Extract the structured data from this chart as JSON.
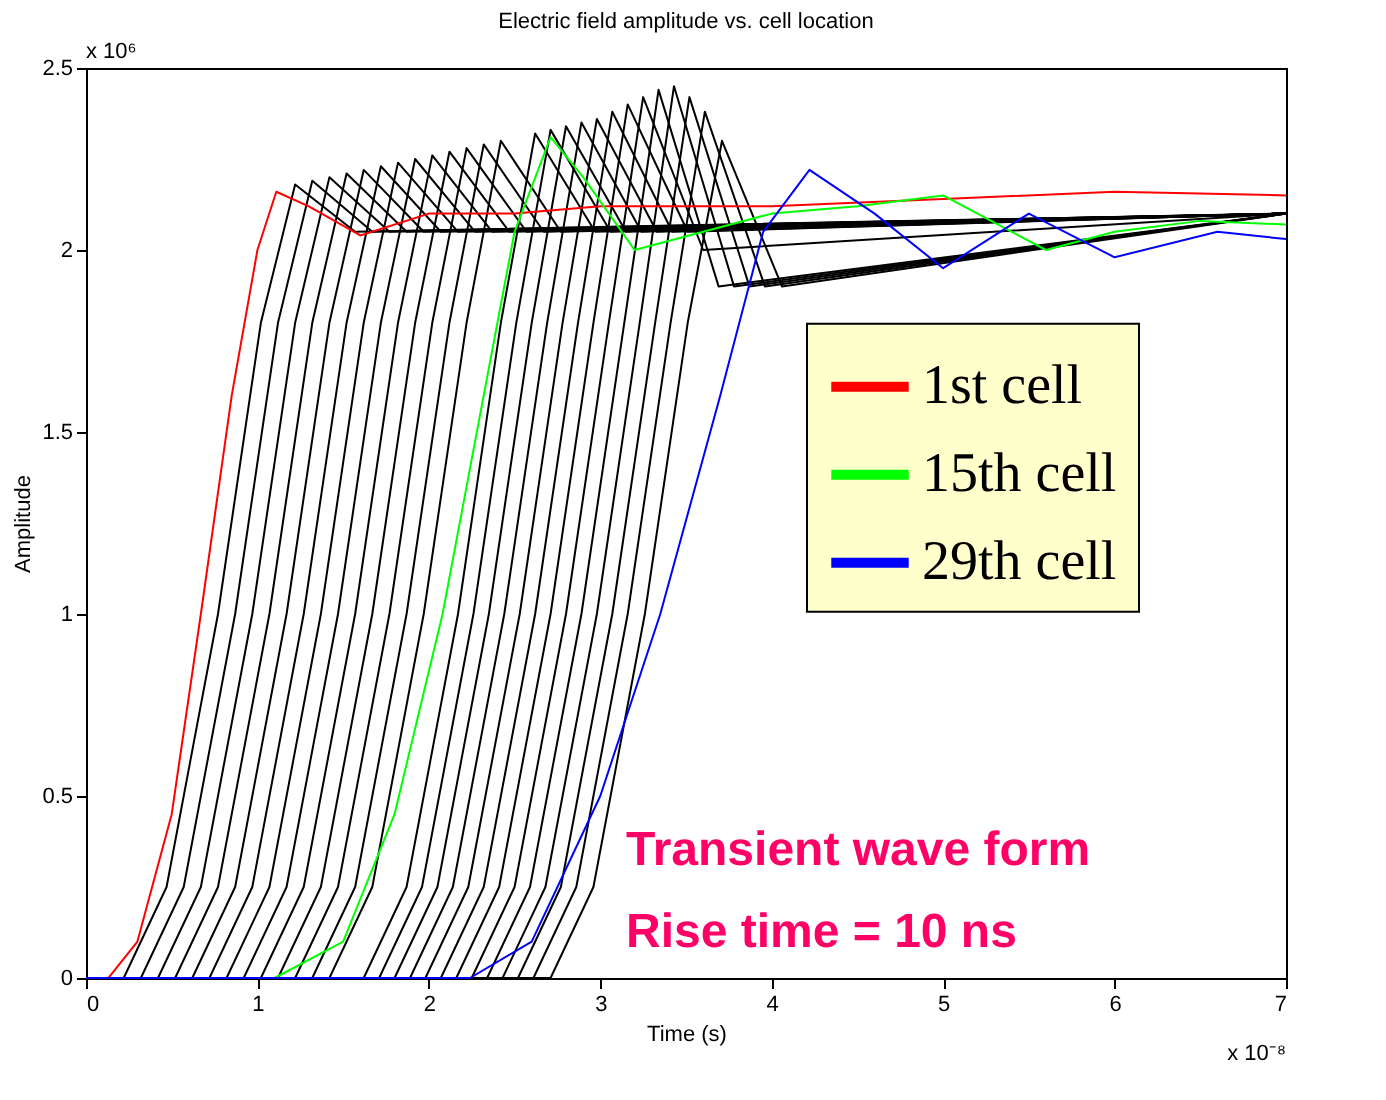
{
  "chart_data": {
    "type": "line",
    "title": "Electric field amplitude vs. cell location",
    "xlabel": "Time (s)",
    "ylabel": "Amplitude",
    "xlim": [
      0,
      7
    ],
    "ylim": [
      0,
      2.5
    ],
    "xticks": [
      0,
      1,
      2,
      3,
      4,
      5,
      6,
      7
    ],
    "yticks": [
      0,
      0.5,
      1,
      1.5,
      2,
      2.5
    ],
    "grid": false,
    "legend": "right",
    "line_style": "solid",
    "marker": "none",
    "annotations": [
      "x 10⁶",
      "x 10⁻⁸",
      "Transient wave form",
      "Rise time = 10 ns"
    ],
    "series": [
      {
        "color": "#000000",
        "x": [
          0,
          0.22,
          0.47,
          0.77,
          1.02,
          1.22,
          1.57,
          7
        ],
        "values": [
          0,
          0,
          0.25,
          1.0,
          1.8,
          2.18,
          2.05,
          2.1
        ]
      },
      {
        "color": "#000000",
        "x": [
          0,
          0.32,
          0.57,
          0.87,
          1.12,
          1.32,
          1.67,
          7
        ],
        "values": [
          0,
          0,
          0.25,
          1.0,
          1.8,
          2.19,
          2.05,
          2.1
        ]
      },
      {
        "color": "#000000",
        "x": [
          0,
          0.42,
          0.67,
          0.97,
          1.22,
          1.42,
          1.77,
          7
        ],
        "values": [
          0,
          0,
          0.25,
          1.0,
          1.8,
          2.2,
          2.05,
          2.1
        ]
      },
      {
        "color": "#000000",
        "x": [
          0,
          0.52,
          0.77,
          1.07,
          1.32,
          1.52,
          1.87,
          7
        ],
        "values": [
          0,
          0,
          0.25,
          1.0,
          1.8,
          2.21,
          2.05,
          2.1
        ]
      },
      {
        "color": "#000000",
        "x": [
          0,
          0.62,
          0.87,
          1.17,
          1.42,
          1.62,
          1.97,
          7
        ],
        "values": [
          0,
          0,
          0.25,
          1.0,
          1.8,
          2.22,
          2.05,
          2.1
        ]
      },
      {
        "color": "#000000",
        "x": [
          0,
          0.72,
          0.97,
          1.27,
          1.52,
          1.72,
          2.07,
          7
        ],
        "values": [
          0,
          0,
          0.25,
          1.0,
          1.8,
          2.23,
          2.05,
          2.1
        ]
      },
      {
        "color": "#000000",
        "x": [
          0,
          0.82,
          1.07,
          1.37,
          1.62,
          1.82,
          2.17,
          7
        ],
        "values": [
          0,
          0,
          0.25,
          1.0,
          1.8,
          2.24,
          2.05,
          2.1
        ]
      },
      {
        "color": "#000000",
        "x": [
          0,
          0.92,
          1.17,
          1.47,
          1.72,
          1.92,
          2.27,
          7
        ],
        "values": [
          0,
          0,
          0.25,
          1.0,
          1.8,
          2.25,
          2.05,
          2.1
        ]
      },
      {
        "color": "#000000",
        "x": [
          0,
          1.02,
          1.27,
          1.57,
          1.82,
          2.02,
          2.37,
          7
        ],
        "values": [
          0,
          0,
          0.25,
          1.0,
          1.8,
          2.26,
          2.05,
          2.1
        ]
      },
      {
        "color": "#000000",
        "x": [
          0,
          1.12,
          1.37,
          1.67,
          1.92,
          2.12,
          2.47,
          7
        ],
        "values": [
          0,
          0,
          0.25,
          1.0,
          1.8,
          2.27,
          2.05,
          2.1
        ]
      },
      {
        "color": "#000000",
        "x": [
          0,
          1.22,
          1.47,
          1.77,
          2.02,
          2.22,
          2.57,
          7
        ],
        "values": [
          0,
          0,
          0.25,
          1.0,
          1.8,
          2.28,
          2.05,
          2.1
        ]
      },
      {
        "color": "#000000",
        "x": [
          0,
          1.32,
          1.57,
          1.87,
          2.12,
          2.32,
          2.67,
          7
        ],
        "values": [
          0,
          0,
          0.25,
          1.0,
          1.8,
          2.29,
          2.05,
          2.1
        ]
      },
      {
        "color": "#000000",
        "x": [
          0,
          1.42,
          1.67,
          1.97,
          2.22,
          2.42,
          2.77,
          7
        ],
        "values": [
          0,
          0,
          0.25,
          1.0,
          1.8,
          2.3,
          2.05,
          2.1
        ]
      },
      {
        "color": "#000000",
        "x": [
          0,
          1.62,
          1.87,
          2.17,
          2.42,
          2.62,
          2.97,
          7
        ],
        "values": [
          0,
          0,
          0.25,
          1.0,
          1.8,
          2.32,
          2.05,
          2.1
        ]
      },
      {
        "color": "#000000",
        "x": [
          0,
          1.71,
          1.96,
          2.26,
          2.51,
          2.71,
          3.06,
          7
        ],
        "values": [
          0,
          0,
          0.25,
          1.0,
          1.8,
          2.33,
          2.05,
          2.1
        ]
      },
      {
        "color": "#000000",
        "x": [
          0,
          1.8,
          2.05,
          2.35,
          2.6,
          2.8,
          3.15,
          7
        ],
        "values": [
          0,
          0,
          0.25,
          1.0,
          1.8,
          2.34,
          2.05,
          2.1
        ]
      },
      {
        "color": "#000000",
        "x": [
          0,
          1.89,
          2.14,
          2.44,
          2.69,
          2.89,
          3.24,
          7
        ],
        "values": [
          0,
          0,
          0.25,
          1.0,
          1.8,
          2.35,
          2.05,
          2.1
        ]
      },
      {
        "color": "#000000",
        "x": [
          0,
          1.98,
          2.23,
          2.53,
          2.78,
          2.98,
          3.33,
          7
        ],
        "values": [
          0,
          0,
          0.25,
          1.0,
          1.8,
          2.36,
          2.05,
          2.1
        ]
      },
      {
        "color": "#000000",
        "x": [
          0,
          2.07,
          2.32,
          2.62,
          2.87,
          3.07,
          3.42,
          7
        ],
        "values": [
          0,
          0,
          0.25,
          1.0,
          1.8,
          2.38,
          2.05,
          2.1
        ]
      },
      {
        "color": "#000000",
        "x": [
          0,
          2.16,
          2.41,
          2.71,
          2.96,
          3.16,
          3.51,
          7
        ],
        "values": [
          0,
          0,
          0.25,
          1.0,
          1.8,
          2.4,
          2.05,
          2.1
        ]
      },
      {
        "color": "#000000",
        "x": [
          0,
          2.25,
          2.5,
          2.8,
          3.05,
          3.25,
          3.6,
          7
        ],
        "values": [
          0,
          0,
          0.25,
          1.0,
          1.8,
          2.42,
          2.0,
          2.1
        ]
      },
      {
        "color": "#000000",
        "x": [
          0,
          2.34,
          2.59,
          2.89,
          3.14,
          3.34,
          3.69,
          7
        ],
        "values": [
          0,
          0,
          0.25,
          1.0,
          1.8,
          2.44,
          1.9,
          2.1
        ]
      },
      {
        "color": "#000000",
        "x": [
          0,
          2.43,
          2.68,
          2.98,
          3.23,
          3.43,
          3.78,
          7
        ],
        "values": [
          0,
          0,
          0.25,
          1.0,
          1.8,
          2.45,
          1.9,
          2.1
        ]
      },
      {
        "color": "#000000",
        "x": [
          0,
          2.52,
          2.77,
          3.07,
          3.32,
          3.52,
          3.87,
          7
        ],
        "values": [
          0,
          0,
          0.25,
          1.0,
          1.8,
          2.42,
          1.9,
          2.1
        ]
      },
      {
        "color": "#000000",
        "x": [
          0,
          2.61,
          2.86,
          3.16,
          3.41,
          3.61,
          3.96,
          7
        ],
        "values": [
          0,
          0,
          0.25,
          1.0,
          1.8,
          2.38,
          1.9,
          2.1
        ]
      },
      {
        "color": "#000000",
        "x": [
          0,
          2.71,
          2.96,
          3.26,
          3.51,
          3.71,
          4.06,
          7
        ],
        "values": [
          0,
          0,
          0.25,
          1.0,
          1.8,
          2.3,
          1.9,
          2.1
        ]
      },
      {
        "name": "1st cell",
        "color": "#ff0000",
        "x": [
          0,
          0.13,
          0.3,
          0.5,
          0.67,
          0.85,
          1.0,
          1.11,
          1.3,
          1.6,
          2.0,
          2.5,
          3,
          4,
          5,
          6,
          7
        ],
        "values": [
          0,
          0,
          0.1,
          0.45,
          1.0,
          1.6,
          2.0,
          2.16,
          2.12,
          2.04,
          2.1,
          2.1,
          2.12,
          2.12,
          2.14,
          2.16,
          2.15
        ]
      },
      {
        "name": "15th cell",
        "color": "#00ff00",
        "x": [
          0,
          1.1,
          1.5,
          1.8,
          2.08,
          2.3,
          2.5,
          2.71,
          2.9,
          3.2,
          3.6,
          4.0,
          4.5,
          5.0,
          5.6,
          6.0,
          6.5,
          7
        ],
        "values": [
          0,
          0,
          0.1,
          0.45,
          1.0,
          1.55,
          2.05,
          2.31,
          2.2,
          2.0,
          2.05,
          2.1,
          2.12,
          2.15,
          2.0,
          2.05,
          2.08,
          2.07
        ]
      },
      {
        "name": "29th cell",
        "color": "#0000ff",
        "x": [
          0,
          2.24,
          2.6,
          3.0,
          3.35,
          3.7,
          3.95,
          4.22,
          4.6,
          5.0,
          5.5,
          6.0,
          6.6,
          7
        ],
        "values": [
          0,
          0,
          0.1,
          0.5,
          1.0,
          1.6,
          2.05,
          2.22,
          2.1,
          1.95,
          2.1,
          1.98,
          2.05,
          2.03
        ]
      }
    ]
  }
}
